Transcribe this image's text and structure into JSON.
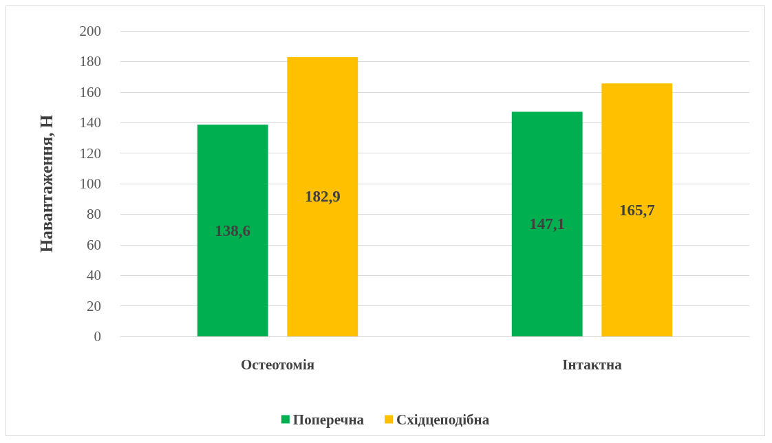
{
  "chart_data": {
    "type": "bar",
    "ylabel": "Навантаження, Н",
    "categories": [
      "Остеотомія",
      "Інтактна"
    ],
    "series": [
      {
        "name": "Поперечна",
        "color": "#00b050",
        "values": [
          138.6,
          147.1
        ],
        "value_labels": [
          "138,6",
          "147,1"
        ]
      },
      {
        "name": "Східцеподібна",
        "color": "#ffc000",
        "values": [
          182.9,
          165.7
        ],
        "value_labels": [
          "182,9",
          "165,7"
        ]
      }
    ],
    "ylim": [
      0,
      200
    ],
    "yticks": [
      0,
      20,
      40,
      60,
      80,
      100,
      120,
      140,
      160,
      180,
      200
    ],
    "grid": "y",
    "legend": "bottom"
  }
}
